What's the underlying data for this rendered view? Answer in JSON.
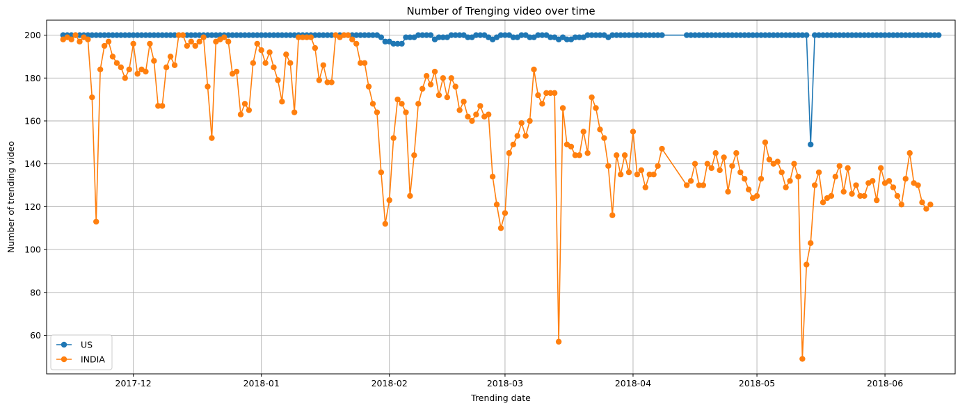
{
  "chart_data": {
    "type": "line",
    "title": "Number of Trenging video over time",
    "xlabel": "Trending date",
    "ylabel": "Number of trending video",
    "x_start": "2017-11-14",
    "x_end": "2018-06-14",
    "xlim": [
      "2017-11-10",
      "2018-06-18"
    ],
    "ylim": [
      42,
      207
    ],
    "grid": true,
    "legend_position": "lower-left",
    "xticks": [
      "2017-12-01",
      "2018-01-01",
      "2018-02-01",
      "2018-03-01",
      "2018-04-01",
      "2018-05-01",
      "2018-06-01"
    ],
    "xtick_labels": [
      "2017-12",
      "2018-01",
      "2018-02",
      "2018-03",
      "2018-04",
      "2018-05",
      "2018-06"
    ],
    "yticks": [
      60,
      80,
      100,
      120,
      140,
      160,
      180,
      200
    ],
    "gap": [
      "2018-04-09",
      "2018-04-13"
    ],
    "series": [
      {
        "name": "US",
        "color": "#1f77b4",
        "default_value": 200,
        "overrides": {
          "2018-01-30": 199,
          "2018-01-31": 197,
          "2018-02-01": 197,
          "2018-02-02": 196,
          "2018-02-03": 196,
          "2018-02-04": 196,
          "2018-02-05": 199,
          "2018-02-06": 199,
          "2018-02-07": 199,
          "2018-02-12": 198,
          "2018-02-13": 199,
          "2018-02-14": 199,
          "2018-02-15": 199,
          "2018-02-20": 199,
          "2018-02-21": 199,
          "2018-02-25": 199,
          "2018-02-26": 198,
          "2018-02-27": 199,
          "2018-03-03": 199,
          "2018-03-04": 199,
          "2018-03-07": 199,
          "2018-03-08": 199,
          "2018-03-12": 199,
          "2018-03-13": 199,
          "2018-03-14": 198,
          "2018-03-15": 199,
          "2018-03-16": 198,
          "2018-03-17": 198,
          "2018-03-18": 199,
          "2018-03-19": 199,
          "2018-03-20": 199,
          "2018-03-26": 199,
          "2018-05-14": 149
        }
      },
      {
        "name": "INDIA",
        "color": "#ff7f0e",
        "values": [
          198,
          199,
          198,
          200,
          197,
          199,
          198,
          171,
          113,
          184,
          195,
          197,
          190,
          187,
          185,
          180,
          184,
          196,
          182,
          184,
          183,
          196,
          188,
          167,
          167,
          185,
          190,
          186,
          200,
          200,
          195,
          197,
          195,
          197,
          199,
          176,
          152,
          197,
          198,
          199,
          197,
          182,
          183,
          163,
          168,
          165,
          187,
          196,
          193,
          187,
          192,
          185,
          179,
          169,
          191,
          187,
          164,
          199,
          199,
          199,
          199,
          194,
          179,
          186,
          178,
          178,
          200,
          199,
          200,
          200,
          198,
          196,
          187,
          187,
          176,
          168,
          164,
          136,
          112,
          123,
          152,
          170,
          168,
          164,
          125,
          144,
          168,
          175,
          181,
          177,
          183,
          172,
          180,
          171,
          180,
          176,
          165,
          169,
          162,
          160,
          163,
          167,
          162,
          163,
          134,
          121,
          110,
          117,
          145,
          149,
          153,
          159,
          153,
          160,
          184,
          172,
          168,
          173,
          173,
          173,
          57,
          166,
          149,
          148,
          144,
          144,
          155,
          145,
          171,
          166,
          156,
          152,
          139,
          116,
          144,
          135,
          144,
          136,
          155,
          135,
          137,
          129,
          135,
          135,
          139,
          147,
          130,
          132,
          140,
          130,
          130,
          140,
          138,
          145,
          137,
          143,
          127,
          139,
          145,
          136,
          133,
          128,
          124,
          125,
          133,
          150,
          142,
          140,
          141,
          136,
          129,
          132,
          140,
          134,
          49,
          93,
          103,
          130,
          136,
          122,
          124,
          125,
          134,
          139,
          127,
          138,
          126,
          130,
          125,
          125,
          131,
          132,
          123,
          138,
          131,
          132,
          129,
          125,
          121,
          133,
          145,
          131,
          130,
          122,
          119,
          121
        ]
      }
    ]
  }
}
